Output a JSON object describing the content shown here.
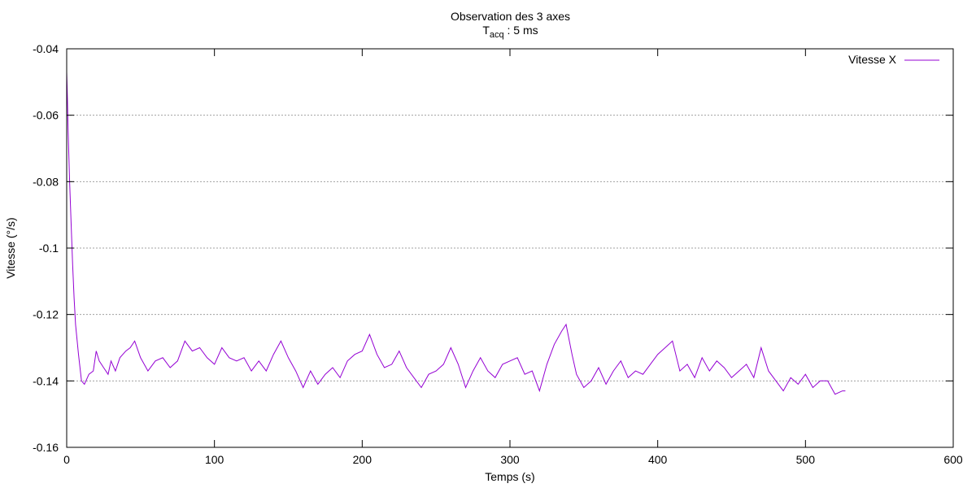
{
  "chart_data": {
    "type": "line",
    "title": "Observation des 3 axes",
    "subtitle_main": "T",
    "subtitle_sub": "acq",
    "subtitle_rest": " : 5 ms",
    "xlabel": "Temps (s)",
    "ylabel": "Vitesse (°/s)",
    "xlim": [
      0,
      600
    ],
    "ylim": [
      -0.16,
      -0.04
    ],
    "xticks": [
      0,
      100,
      200,
      300,
      400,
      500,
      600
    ],
    "yticks": [
      -0.16,
      -0.14,
      -0.12,
      -0.1,
      -0.08,
      -0.06,
      -0.04
    ],
    "ytick_labels": [
      "-0.16",
      "-0.14",
      "-0.12",
      "-0.1",
      "-0.08",
      "-0.06",
      "-0.04"
    ],
    "grid": "horizontal dotted",
    "legend_position": "top-right",
    "series": [
      {
        "name": "Vitesse X",
        "color": "#9400d3",
        "x": [
          0,
          0.5,
          1,
          2,
          3,
          4,
          5,
          6,
          8,
          10,
          12,
          15,
          18,
          20,
          22,
          25,
          28,
          30,
          33,
          36,
          40,
          43,
          46,
          50,
          55,
          60,
          65,
          70,
          75,
          80,
          85,
          90,
          95,
          100,
          105,
          110,
          115,
          120,
          125,
          130,
          135,
          140,
          145,
          150,
          155,
          160,
          165,
          170,
          175,
          180,
          185,
          190,
          195,
          200,
          205,
          210,
          215,
          220,
          225,
          230,
          235,
          240,
          245,
          250,
          255,
          260,
          265,
          270,
          275,
          280,
          285,
          290,
          295,
          300,
          305,
          310,
          315,
          320,
          325,
          330,
          335,
          338,
          342,
          345,
          350,
          355,
          360,
          365,
          370,
          375,
          380,
          385,
          390,
          395,
          400,
          405,
          410,
          415,
          420,
          425,
          430,
          435,
          440,
          445,
          450,
          455,
          460,
          465,
          470,
          475,
          480,
          485,
          490,
          495,
          500,
          505,
          510,
          515,
          520,
          525,
          527
        ],
        "y": [
          -0.047,
          -0.055,
          -0.065,
          -0.08,
          -0.093,
          -0.105,
          -0.115,
          -0.123,
          -0.132,
          -0.14,
          -0.141,
          -0.138,
          -0.137,
          -0.131,
          -0.134,
          -0.136,
          -0.138,
          -0.134,
          -0.137,
          -0.133,
          -0.131,
          -0.13,
          -0.128,
          -0.133,
          -0.137,
          -0.134,
          -0.133,
          -0.136,
          -0.134,
          -0.128,
          -0.131,
          -0.13,
          -0.133,
          -0.135,
          -0.13,
          -0.133,
          -0.134,
          -0.133,
          -0.137,
          -0.134,
          -0.137,
          -0.132,
          -0.128,
          -0.133,
          -0.137,
          -0.142,
          -0.137,
          -0.141,
          -0.138,
          -0.136,
          -0.139,
          -0.134,
          -0.132,
          -0.131,
          -0.126,
          -0.132,
          -0.136,
          -0.135,
          -0.131,
          -0.136,
          -0.139,
          -0.142,
          -0.138,
          -0.137,
          -0.135,
          -0.13,
          -0.135,
          -0.142,
          -0.137,
          -0.133,
          -0.137,
          -0.139,
          -0.135,
          -0.134,
          -0.133,
          -0.138,
          -0.137,
          -0.143,
          -0.135,
          -0.129,
          -0.125,
          -0.123,
          -0.132,
          -0.138,
          -0.142,
          -0.14,
          -0.136,
          -0.141,
          -0.137,
          -0.134,
          -0.139,
          -0.137,
          -0.138,
          -0.135,
          -0.132,
          -0.13,
          -0.128,
          -0.137,
          -0.135,
          -0.139,
          -0.133,
          -0.137,
          -0.134,
          -0.136,
          -0.139,
          -0.137,
          -0.135,
          -0.139,
          -0.13,
          -0.137,
          -0.14,
          -0.143,
          -0.139,
          -0.141,
          -0.138,
          -0.142,
          -0.14,
          -0.14,
          -0.144,
          -0.143,
          -0.143
        ]
      }
    ]
  }
}
